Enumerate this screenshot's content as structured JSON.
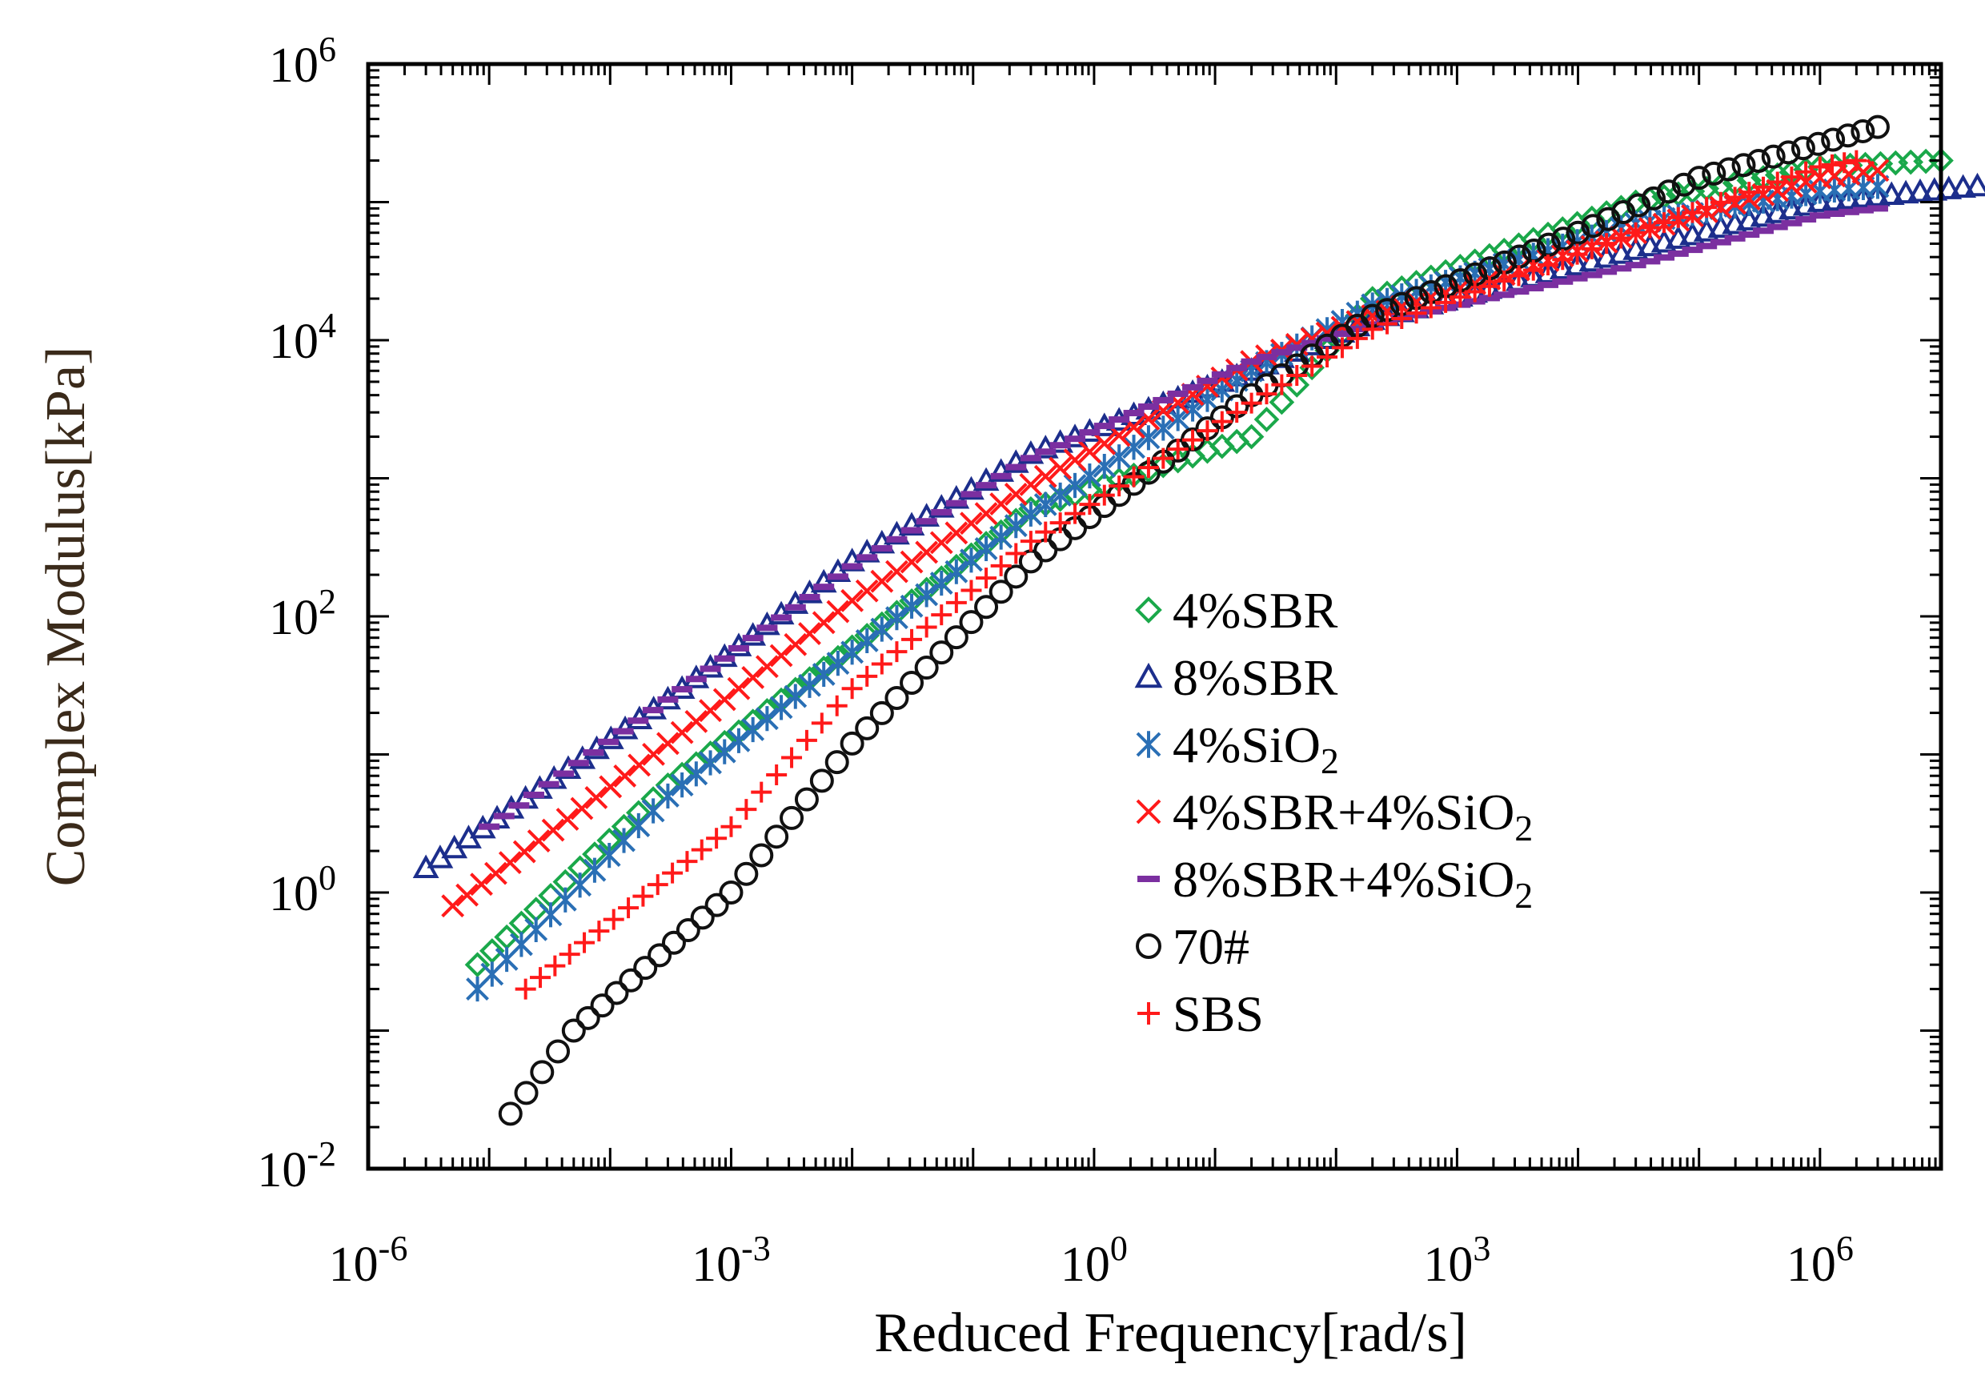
{
  "chart_data": {
    "type": "scatter",
    "title": "",
    "xlabel": "Reduced Frequency[rad/s]",
    "ylabel": "Complex Modulus[kPa]",
    "x_scale": "log",
    "y_scale": "log",
    "xlim": [
      1e-06,
      10000000.0
    ],
    "ylim": [
      0.01,
      1000000
    ],
    "x_ticks": [
      {
        "value": 1e-06,
        "base": "10",
        "exp": "-6"
      },
      {
        "value": 0.001,
        "base": "10",
        "exp": "-3"
      },
      {
        "value": 1,
        "base": "10",
        "exp": "0"
      },
      {
        "value": 1000.0,
        "base": "10",
        "exp": "3"
      },
      {
        "value": 1000000.0,
        "base": "10",
        "exp": "6"
      }
    ],
    "y_ticks": [
      {
        "value": 0.01,
        "base": "10",
        "exp": "-2"
      },
      {
        "value": 1,
        "base": "10",
        "exp": "0"
      },
      {
        "value": 100,
        "base": "10",
        "exp": "2"
      },
      {
        "value": 10000,
        "base": "10",
        "exp": "4"
      },
      {
        "value": 1000000,
        "base": "10",
        "exp": "6"
      }
    ],
    "grid": false,
    "legend_position": "center-right",
    "series": [
      {
        "name": "4%SBR",
        "legend": "4%SBR",
        "sub": "",
        "marker": "diamond",
        "color": "#1aa84a",
        "points": [
          [
            8e-06,
            0.3
          ],
          [
            0.0003,
            6
          ],
          [
            0.01,
            60
          ],
          [
            0.3,
            600
          ],
          [
            20,
            2000
          ],
          [
            200,
            20000
          ],
          [
            30000.0,
            100000
          ],
          [
            1000000.0,
            180000
          ],
          [
            10000000.0,
            200000
          ]
        ]
      },
      {
        "name": "8%SBR",
        "legend": "8%SBR",
        "sub": "",
        "marker": "triangle",
        "color": "#1c2e8c",
        "points": [
          [
            3e-06,
            1.5
          ],
          [
            0.0003,
            25
          ],
          [
            0.01,
            250
          ],
          [
            0.3,
            1500
          ],
          [
            20,
            6000
          ],
          [
            200,
            14000
          ],
          [
            30000.0,
            45000
          ],
          [
            1000000.0,
            100000
          ],
          [
            20000000.0,
            130000
          ]
        ]
      },
      {
        "name": "4%SiO2",
        "legend": "4%SiO",
        "sub": "2",
        "marker": "asterisk",
        "color": "#2a6fb5",
        "points": [
          [
            8e-06,
            0.2
          ],
          [
            0.0003,
            5
          ],
          [
            0.01,
            55
          ],
          [
            0.3,
            550
          ],
          [
            20,
            6000
          ],
          [
            200,
            18000
          ],
          [
            30000.0,
            70000
          ],
          [
            1000000.0,
            120000
          ],
          [
            3000000.0,
            130000
          ]
        ]
      },
      {
        "name": "4%SBR+4%SiO2",
        "legend": "4%SBR+4%SiO",
        "sub": "2",
        "marker": "x",
        "color": "#ff1a1a",
        "points": [
          [
            5e-06,
            0.8
          ],
          [
            0.0003,
            12
          ],
          [
            0.01,
            130
          ],
          [
            0.3,
            900
          ],
          [
            20,
            7000
          ],
          [
            200,
            15000
          ],
          [
            30000.0,
            60000
          ],
          [
            1000000.0,
            150000
          ],
          [
            3000000.0,
            170000
          ]
        ]
      },
      {
        "name": "8%SBR+4%SiO2",
        "legend": "8%SBR+4%SiO",
        "sub": "2",
        "marker": "dash",
        "color": "#7b2fa0",
        "points": [
          [
            1e-05,
            3
          ],
          [
            0.0003,
            25
          ],
          [
            0.01,
            230
          ],
          [
            0.3,
            1400
          ],
          [
            20,
            7000
          ],
          [
            200,
            13000
          ],
          [
            30000.0,
            35000
          ],
          [
            1000000.0,
            80000
          ],
          [
            3000000.0,
            90000
          ]
        ]
      },
      {
        "name": "70#",
        "legend": "70#",
        "sub": "",
        "marker": "circle",
        "color": "#111111",
        "points": [
          [
            1.5e-05,
            0.025
          ],
          [
            5e-05,
            0.1
          ],
          [
            0.001,
            1
          ],
          [
            0.01,
            12
          ],
          [
            0.3,
            250
          ],
          [
            20,
            4000
          ],
          [
            200,
            15000
          ],
          [
            10000.0,
            60000
          ],
          [
            100000.0,
            150000
          ],
          [
            3000000.0,
            350000
          ]
        ]
      },
      {
        "name": "SBS",
        "legend": "SBS",
        "sub": "",
        "marker": "plus",
        "color": "#ff1a1a",
        "points": [
          [
            2e-05,
            0.2
          ],
          [
            0.001,
            3
          ],
          [
            0.01,
            30
          ],
          [
            0.3,
            350
          ],
          [
            20,
            3500
          ],
          [
            200,
            12000
          ],
          [
            30000.0,
            60000
          ],
          [
            1000000.0,
            180000
          ],
          [
            2000000.0,
            200000
          ]
        ]
      }
    ]
  }
}
